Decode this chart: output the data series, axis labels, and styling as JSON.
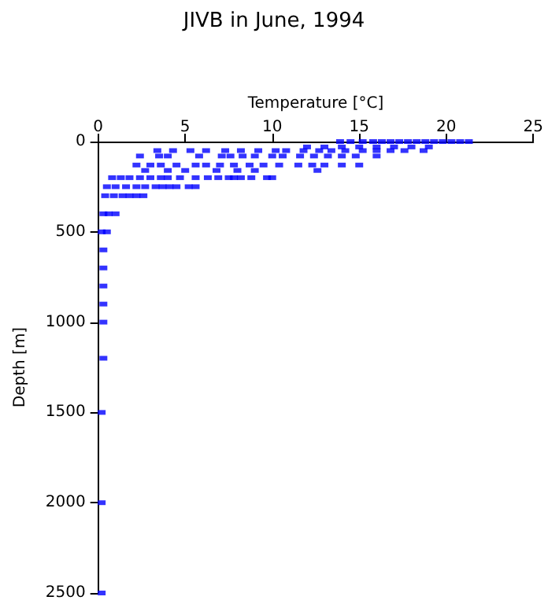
{
  "chart_data": {
    "type": "scatter",
    "title": "JIVB in June, 1994",
    "xlabel": "Temperature [°C]",
    "ylabel": "Depth [m]",
    "xlim": [
      0,
      25
    ],
    "xticks": [
      0,
      5,
      10,
      15,
      20,
      25
    ],
    "ylim": [
      2500,
      0
    ],
    "yticks": [
      0,
      500,
      1000,
      1500,
      2000,
      2500
    ],
    "grid": false,
    "marker": "square",
    "series": [
      {
        "color": "#0000ff",
        "x": [
          13.9,
          14.5,
          15.2,
          15.8,
          16.3,
          16.8,
          17.3,
          17.8,
          18.3,
          18.8,
          19.3,
          19.8,
          20.3,
          20.8,
          21.3,
          12.0,
          13.0,
          14.0,
          15.0,
          16.0,
          17.0,
          18.0,
          19.0,
          3.4,
          4.3,
          5.3,
          6.2,
          7.3,
          8.2,
          9.2,
          10.2,
          10.8,
          11.8,
          12.7,
          13.4,
          14.2,
          15.2,
          16.0,
          16.8,
          17.6,
          18.7,
          2.4,
          3.5,
          4.0,
          5.8,
          7.1,
          7.6,
          8.3,
          9.0,
          10.0,
          10.6,
          11.6,
          12.4,
          13.2,
          14.0,
          14.8,
          16.0,
          2.2,
          3.0,
          3.6,
          4.5,
          5.6,
          6.2,
          7.0,
          7.8,
          8.7,
          9.5,
          10.4,
          11.5,
          12.3,
          13.0,
          14.0,
          15.0,
          2.7,
          4.0,
          5.0,
          6.8,
          8.0,
          9.0,
          12.6,
          0.8,
          1.3,
          1.8,
          2.4,
          3.0,
          3.6,
          4.0,
          4.7,
          5.6,
          6.3,
          6.9,
          7.5,
          7.8,
          8.2,
          8.8,
          9.7,
          10.0,
          0.5,
          1.0,
          1.6,
          2.2,
          2.7,
          3.3,
          3.7,
          4.1,
          4.5,
          5.2,
          5.6,
          0.4,
          0.9,
          1.4,
          1.8,
          2.2,
          2.6,
          0.3,
          0.6,
          1.0,
          0.2,
          0.5,
          0.3,
          0.3,
          0.3,
          0.3,
          0.3,
          0.3,
          0.2,
          0.2,
          0.2
        ],
        "values": [
          0,
          0,
          0,
          0,
          0,
          0,
          0,
          0,
          0,
          0,
          0,
          0,
          0,
          0,
          0,
          30,
          30,
          30,
          30,
          30,
          30,
          30,
          30,
          50,
          50,
          50,
          50,
          50,
          50,
          50,
          50,
          50,
          50,
          50,
          50,
          50,
          50,
          50,
          50,
          50,
          50,
          80,
          80,
          80,
          80,
          80,
          80,
          80,
          80,
          80,
          80,
          80,
          80,
          80,
          80,
          80,
          80,
          130,
          130,
          130,
          130,
          130,
          130,
          130,
          130,
          130,
          130,
          130,
          130,
          130,
          130,
          130,
          130,
          160,
          160,
          160,
          160,
          160,
          160,
          160,
          200,
          200,
          200,
          200,
          200,
          200,
          200,
          200,
          200,
          200,
          200,
          200,
          200,
          200,
          200,
          200,
          200,
          250,
          250,
          250,
          250,
          250,
          250,
          250,
          250,
          250,
          250,
          250,
          300,
          300,
          300,
          300,
          300,
          300,
          400,
          400,
          400,
          500,
          500,
          600,
          700,
          800,
          900,
          1000,
          1200,
          1500,
          2000,
          2500
        ]
      }
    ]
  }
}
